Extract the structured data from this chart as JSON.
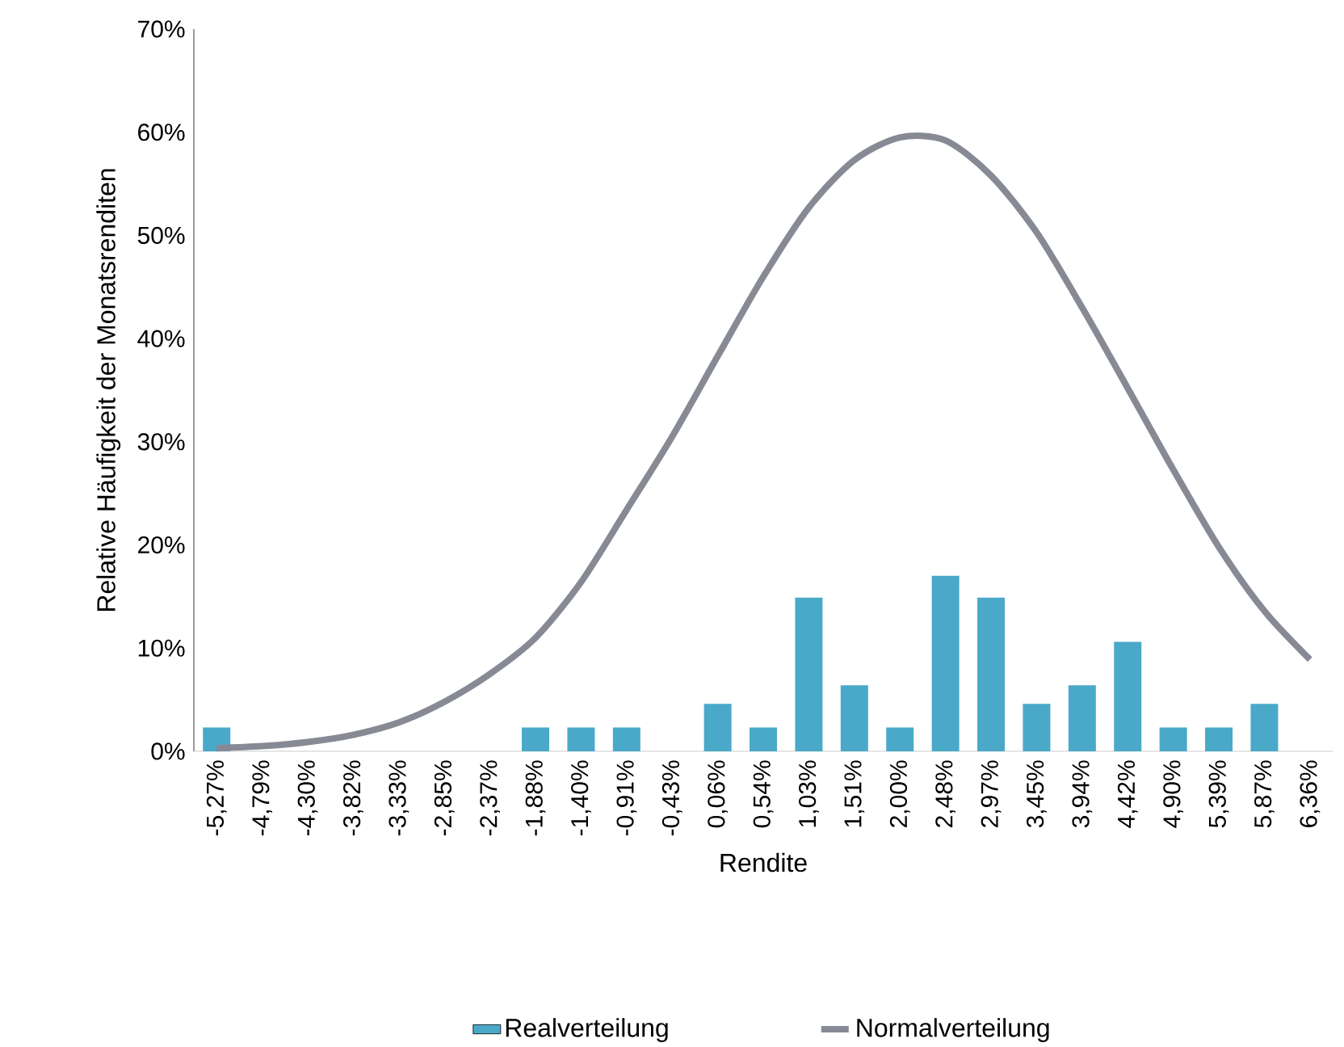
{
  "chart_data": {
    "type": "bar",
    "xlabel": "Rendite",
    "ylabel": "Relative Häufigkeit der Monatsrenditen",
    "categories": [
      "-5,27%",
      "-4,79%",
      "-4,30%",
      "-3,82%",
      "-3,33%",
      "-2,85%",
      "-2,37%",
      "-1,88%",
      "-1,40%",
      "-0,91%",
      "-0,43%",
      "0,06%",
      "0,54%",
      "1,03%",
      "1,51%",
      "2,00%",
      "2,48%",
      "2,97%",
      "3,45%",
      "3,94%",
      "4,42%",
      "4,90%",
      "5,39%",
      "5,87%",
      "6,36%"
    ],
    "series": [
      {
        "name": "Realverteilung",
        "color": "#4aa9c8",
        "values": [
          2.3,
          0,
          0,
          0,
          0,
          0,
          0,
          2.3,
          2.3,
          2.3,
          0,
          4.6,
          2.3,
          14.9,
          6.4,
          2.3,
          17.0,
          14.9,
          4.6,
          6.4,
          10.6,
          2.3,
          2.3,
          4.6,
          0
        ]
      },
      {
        "name": "Normalverteilung",
        "type": "line",
        "color": "#878a94",
        "values": [
          0.3,
          0.5,
          0.9,
          1.6,
          2.8,
          4.8,
          7.5,
          11.0,
          16.4,
          23.4,
          30.5,
          38.3,
          46.0,
          52.7,
          57.3,
          59.5,
          59.2,
          55.8,
          50.3,
          43.0,
          35.2,
          27.3,
          19.8,
          13.6,
          8.9
        ]
      }
    ],
    "ylim": [
      0,
      70
    ],
    "yticks": [
      {
        "value": 0,
        "label": "0%"
      },
      {
        "value": 10,
        "label": "10%"
      },
      {
        "value": 20,
        "label": "20%"
      },
      {
        "value": 30,
        "label": "30%"
      },
      {
        "value": 40,
        "label": "40%"
      },
      {
        "value": 50,
        "label": "50%"
      },
      {
        "value": 60,
        "label": "60%"
      },
      {
        "value": 70,
        "label": "70%"
      }
    ],
    "grid": false,
    "legend": "bottom",
    "marker": "none",
    "line_style": "solid"
  }
}
